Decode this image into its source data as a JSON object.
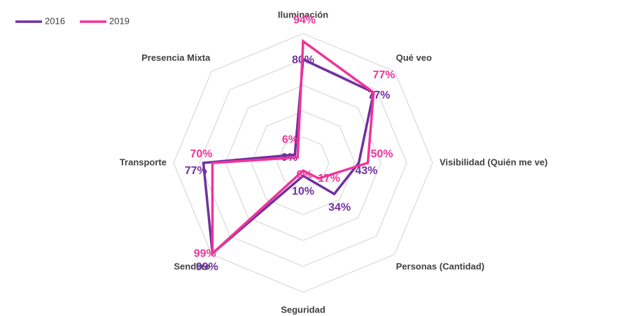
{
  "chart_data": {
    "type": "radar",
    "categories": [
      "Iluminación",
      "Qué veo",
      "Visibilidad (Quién me ve)",
      "Personas (Cantidad)",
      "Seguridad",
      "Sendero",
      "Transporte",
      "Presencia Mixta"
    ],
    "series": [
      {
        "name": "2016",
        "color": "#7030a0",
        "values": [
          80,
          77,
          43,
          34,
          10,
          99,
          77,
          9
        ],
        "value_labels": [
          "80%",
          "77%",
          "43%",
          "34%",
          "10%",
          "99%",
          "77%",
          "9%"
        ]
      },
      {
        "name": "2019",
        "color": "#f0349a",
        "values": [
          94,
          77,
          50,
          17,
          6,
          99,
          70,
          6
        ],
        "value_labels": [
          "94%",
          "77%",
          "50%",
          "17%",
          "6%",
          "99%",
          "70%",
          "6%"
        ]
      }
    ],
    "rlim": [
      0,
      100
    ],
    "rticks": [
      0,
      20,
      40,
      60,
      80,
      100
    ],
    "grid": true,
    "legend": "top-left"
  }
}
